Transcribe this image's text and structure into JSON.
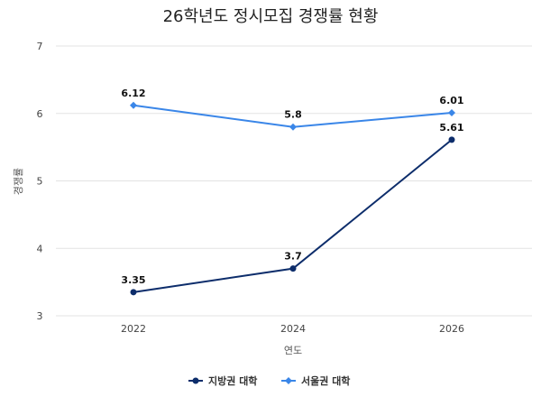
{
  "chart_data": {
    "type": "line",
    "title": "26학년도 정시모집 경쟁률 현황",
    "xlabel": "연도",
    "ylabel": "경쟁률",
    "categories": [
      "2022",
      "2024",
      "2026"
    ],
    "ylim": [
      3,
      7
    ],
    "yticks": [
      3,
      4,
      5,
      6,
      7
    ],
    "grid": true,
    "legend_position": "bottom",
    "series": [
      {
        "name": "지방권 대학",
        "values": [
          3.35,
          3.7,
          5.61
        ],
        "color": "#0d2d6b",
        "marker": "circle"
      },
      {
        "name": "서울권 대학",
        "values": [
          6.12,
          5.8,
          6.01
        ],
        "color": "#3a86e8",
        "marker": "diamond"
      }
    ]
  }
}
